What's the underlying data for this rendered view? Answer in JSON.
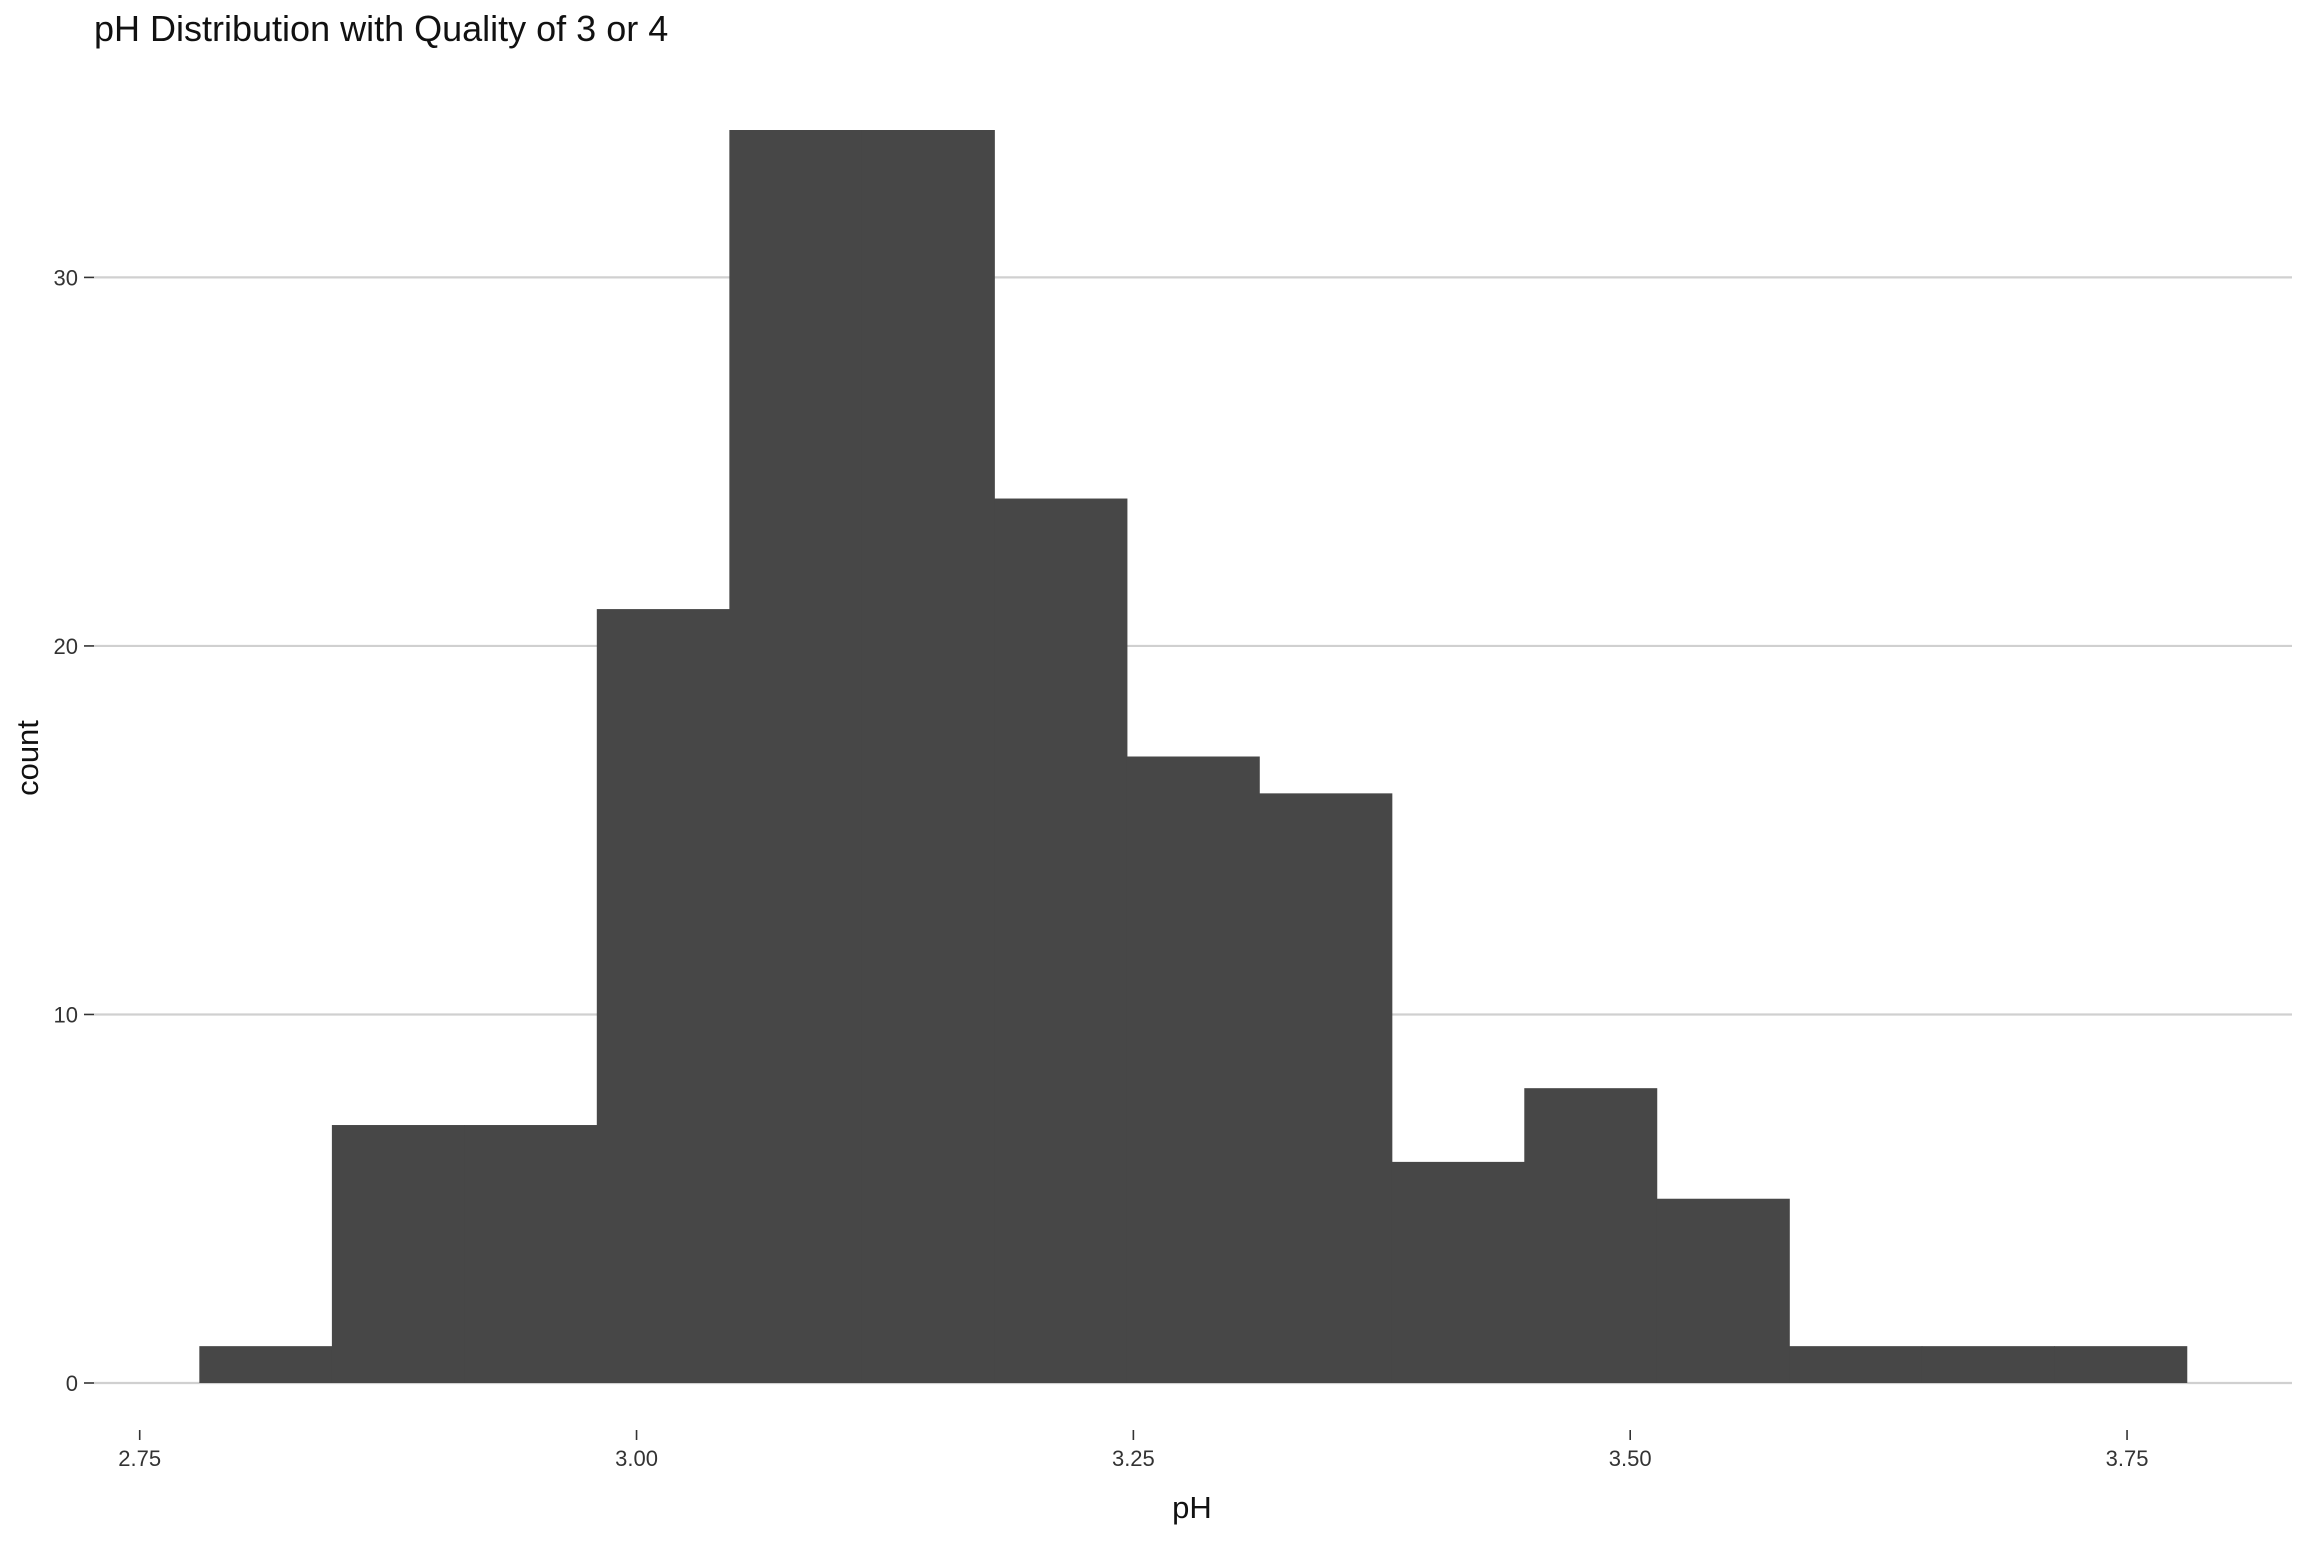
{
  "chart_data": {
    "type": "bar",
    "title": "pH Distribution with Quality of 3 or 4",
    "xlabel": "pH",
    "ylabel": "count",
    "bin_width": 0.0667,
    "bins": [
      {
        "x_start": 2.78,
        "x_end": 2.8467,
        "count": 1
      },
      {
        "x_start": 2.8467,
        "x_end": 2.9133,
        "count": 7
      },
      {
        "x_start": 2.9133,
        "x_end": 2.98,
        "count": 7
      },
      {
        "x_start": 2.98,
        "x_end": 3.0467,
        "count": 21
      },
      {
        "x_start": 3.0467,
        "x_end": 3.1133,
        "count": 34
      },
      {
        "x_start": 3.1133,
        "x_end": 3.18,
        "count": 34
      },
      {
        "x_start": 3.18,
        "x_end": 3.2467,
        "count": 24
      },
      {
        "x_start": 3.2467,
        "x_end": 3.3133,
        "count": 17
      },
      {
        "x_start": 3.3133,
        "x_end": 3.38,
        "count": 16
      },
      {
        "x_start": 3.38,
        "x_end": 3.4467,
        "count": 6
      },
      {
        "x_start": 3.4467,
        "x_end": 3.5133,
        "count": 8
      },
      {
        "x_start": 3.5133,
        "x_end": 3.58,
        "count": 5
      },
      {
        "x_start": 3.58,
        "x_end": 3.6467,
        "count": 1
      },
      {
        "x_start": 3.6467,
        "x_end": 3.7133,
        "count": 1
      },
      {
        "x_start": 3.7133,
        "x_end": 3.78,
        "count": 1
      }
    ],
    "xlim": [
      2.727,
      3.833
    ],
    "ylim": [
      0,
      36
    ],
    "x_ticks": [
      2.75,
      3.0,
      3.25,
      3.5,
      3.75
    ],
    "x_tick_labels": [
      "2.75",
      "3.00",
      "3.25",
      "3.50",
      "3.75"
    ],
    "y_ticks": [
      0,
      10,
      20,
      30
    ],
    "y_tick_labels": [
      "0",
      "10",
      "20",
      "30"
    ],
    "grid": "horizontal",
    "legend": "none",
    "colors": {
      "bar_fill": "#474747",
      "grid_line": "#d0d0d0",
      "tick_text": "#333333",
      "axis_title": "#111111",
      "background": "#ffffff"
    }
  }
}
